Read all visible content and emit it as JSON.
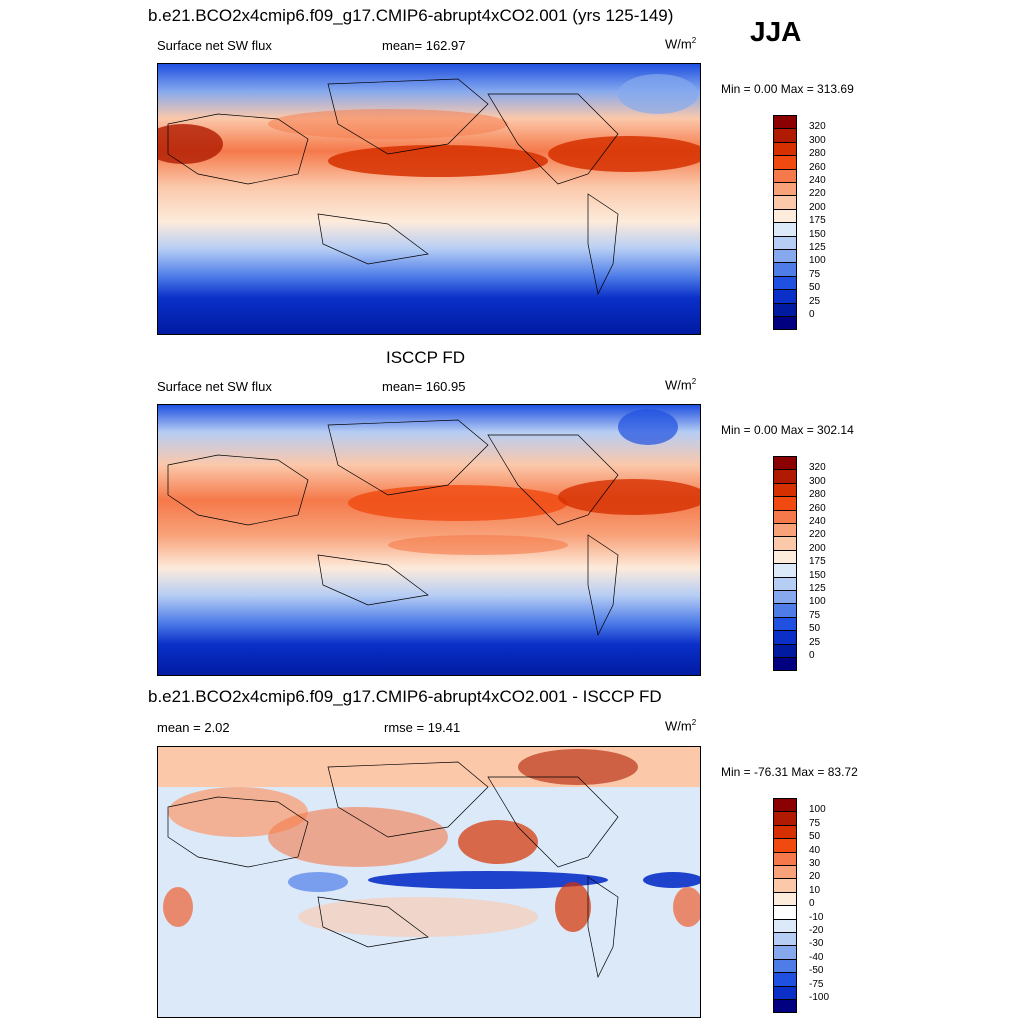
{
  "season": "JJA",
  "panels": [
    {
      "title": "b.e21.BCO2x4cmip6.f09_g17.CMIP6-abrupt4xCO2.001 (yrs 125-149)",
      "left_label": "Surface net SW flux",
      "center_label": "mean= 162.97",
      "units": "W/m",
      "units_sup": "2",
      "minmax": "Min =   0.00 Max = 313.69"
    },
    {
      "title": "ISCCP FD",
      "left_label": "Surface net SW flux",
      "center_label": "mean= 160.95",
      "units": "W/m",
      "units_sup": "2",
      "minmax": "Min =   0.00 Max = 302.14"
    },
    {
      "title": "b.e21.BCO2x4cmip6.f09_g17.CMIP6-abrupt4xCO2.001 - ISCCP FD",
      "left_label": "mean =   2.02",
      "center_label": "rmse =  19.41",
      "units": "W/m",
      "units_sup": "2",
      "minmax": "Min = -76.31 Max =  83.72"
    }
  ],
  "chart_data": [
    {
      "type": "heatmap",
      "title": "b.e21.BCO2x4cmip6.f09_g17.CMIP6-abrupt4xCO2.001 (yrs 125-149)",
      "variable": "Surface net SW flux",
      "units": "W/m2",
      "mean": 162.97,
      "min": 0.0,
      "max": 313.69,
      "colorbar_levels": [
        "320",
        "300",
        "280",
        "260",
        "240",
        "220",
        "200",
        "175",
        "150",
        "125",
        "100",
        "75",
        "50",
        "25",
        "0"
      ],
      "colorbar_colors": [
        "#8b0000",
        "#b01a00",
        "#d63000",
        "#f04a10",
        "#f5794a",
        "#f8a27a",
        "#fbc8aa",
        "#fdebdb",
        "#dbe9f9",
        "#b6cdf4",
        "#86a9ee",
        "#4f7de8",
        "#1f50e0",
        "#0a30c8",
        "#001aa0",
        "#000080"
      ]
    },
    {
      "type": "heatmap",
      "title": "ISCCP FD",
      "variable": "Surface net SW flux",
      "units": "W/m2",
      "mean": 160.95,
      "min": 0.0,
      "max": 302.14,
      "colorbar_levels": [
        "320",
        "300",
        "280",
        "260",
        "240",
        "220",
        "200",
        "175",
        "150",
        "125",
        "100",
        "75",
        "50",
        "25",
        "0"
      ],
      "colorbar_colors": [
        "#8b0000",
        "#b01a00",
        "#d63000",
        "#f04a10",
        "#f5794a",
        "#f8a27a",
        "#fbc8aa",
        "#fdebdb",
        "#dbe9f9",
        "#b6cdf4",
        "#86a9ee",
        "#4f7de8",
        "#1f50e0",
        "#0a30c8",
        "#001aa0",
        "#000080"
      ]
    },
    {
      "type": "heatmap",
      "title": "b.e21.BCO2x4cmip6.f09_g17.CMIP6-abrupt4xCO2.001 - ISCCP FD",
      "units": "W/m2",
      "mean": 2.02,
      "rmse": 19.41,
      "min": -76.31,
      "max": 83.72,
      "colorbar_levels": [
        "100",
        "75",
        "50",
        "40",
        "30",
        "20",
        "10",
        "0",
        "-10",
        "-20",
        "-30",
        "-40",
        "-50",
        "-75",
        "-100"
      ],
      "colorbar_colors": [
        "#8b0000",
        "#b01a00",
        "#d63000",
        "#f04a10",
        "#f5794a",
        "#f8a27a",
        "#fbc8aa",
        "#fdebdb",
        "#ffffff",
        "#dbe9f9",
        "#b6cdf4",
        "#86a9ee",
        "#4f7de8",
        "#1f50e0",
        "#0a30c8",
        "#000080"
      ]
    }
  ]
}
